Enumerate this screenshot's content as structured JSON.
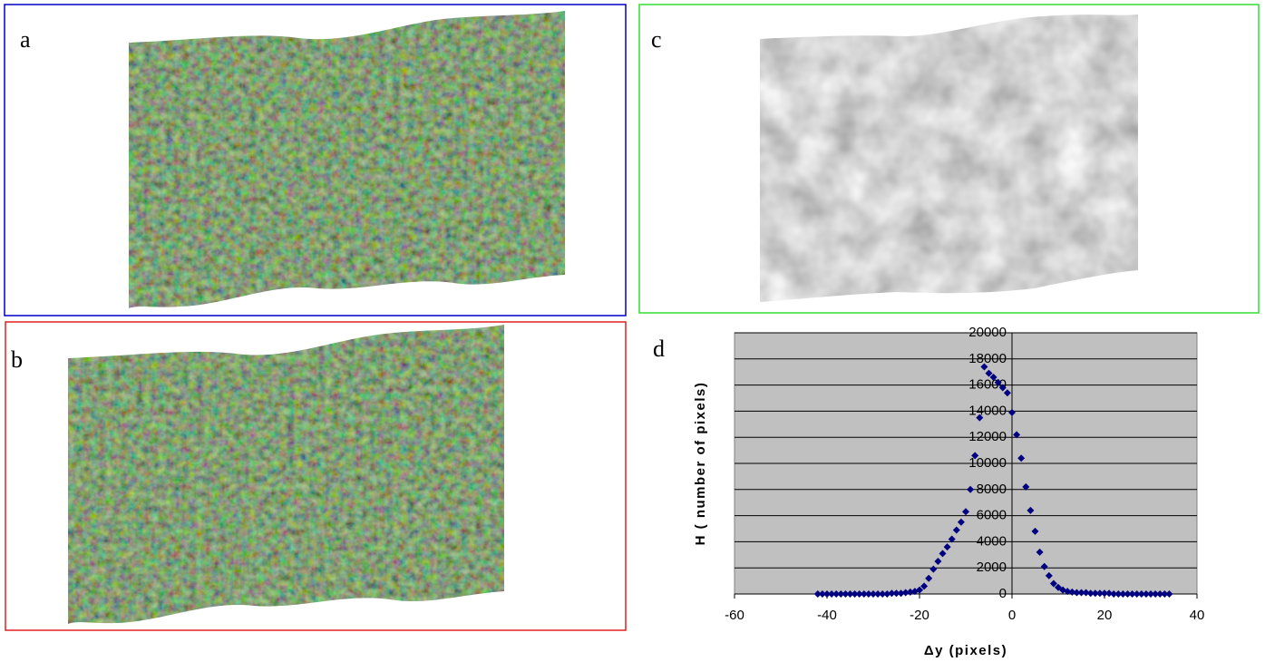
{
  "panels": [
    "a",
    "b",
    "c"
  ],
  "chart_data": {
    "type": "scatter",
    "panel_label": "d",
    "x_label": "Δy (pixels)",
    "y_label": "H ( number of pixels)",
    "xlim": [
      -60,
      40
    ],
    "xticks": [
      -60,
      -40,
      -20,
      0,
      20,
      40
    ],
    "ylim": [
      0,
      20000
    ],
    "yticks": [
      0,
      2000,
      4000,
      6000,
      8000,
      10000,
      12000,
      14000,
      16000,
      18000,
      20000
    ],
    "grid": true,
    "color": "#000080",
    "x": [
      -42,
      -41,
      -40,
      -39,
      -38,
      -37,
      -36,
      -35,
      -34,
      -33,
      -32,
      -31,
      -30,
      -29,
      -28,
      -27,
      -26,
      -25,
      -24,
      -23,
      -22,
      -21,
      -20,
      -19,
      -18,
      -17,
      -16,
      -15,
      -14,
      -13,
      -12,
      -11,
      -10,
      -9,
      -8,
      -7,
      -6,
      -5,
      -4,
      -3,
      -2,
      -1,
      0,
      1,
      2,
      3,
      4,
      5,
      6,
      7,
      8,
      9,
      10,
      11,
      12,
      13,
      14,
      15,
      16,
      17,
      18,
      19,
      20,
      21,
      22,
      23,
      24,
      25,
      26,
      27,
      28,
      29,
      30,
      31,
      32,
      33,
      34
    ],
    "values": [
      0,
      0,
      0,
      0,
      0,
      0,
      0,
      0,
      0,
      0,
      0,
      0,
      0,
      0,
      0,
      0,
      50,
      50,
      50,
      100,
      150,
      200,
      300,
      600,
      1200,
      1900,
      2500,
      3100,
      3600,
      4200,
      4900,
      5500,
      6300,
      8000,
      10600,
      13500,
      17400,
      16900,
      16600,
      16200,
      15800,
      15400,
      13900,
      12200,
      10400,
      8200,
      6400,
      4800,
      3200,
      2100,
      1400,
      800,
      500,
      300,
      200,
      150,
      100,
      100,
      100,
      50,
      50,
      50,
      50,
      50,
      0,
      0,
      0,
      0,
      0,
      0,
      0,
      0,
      0,
      0,
      0,
      0,
      0
    ]
  }
}
